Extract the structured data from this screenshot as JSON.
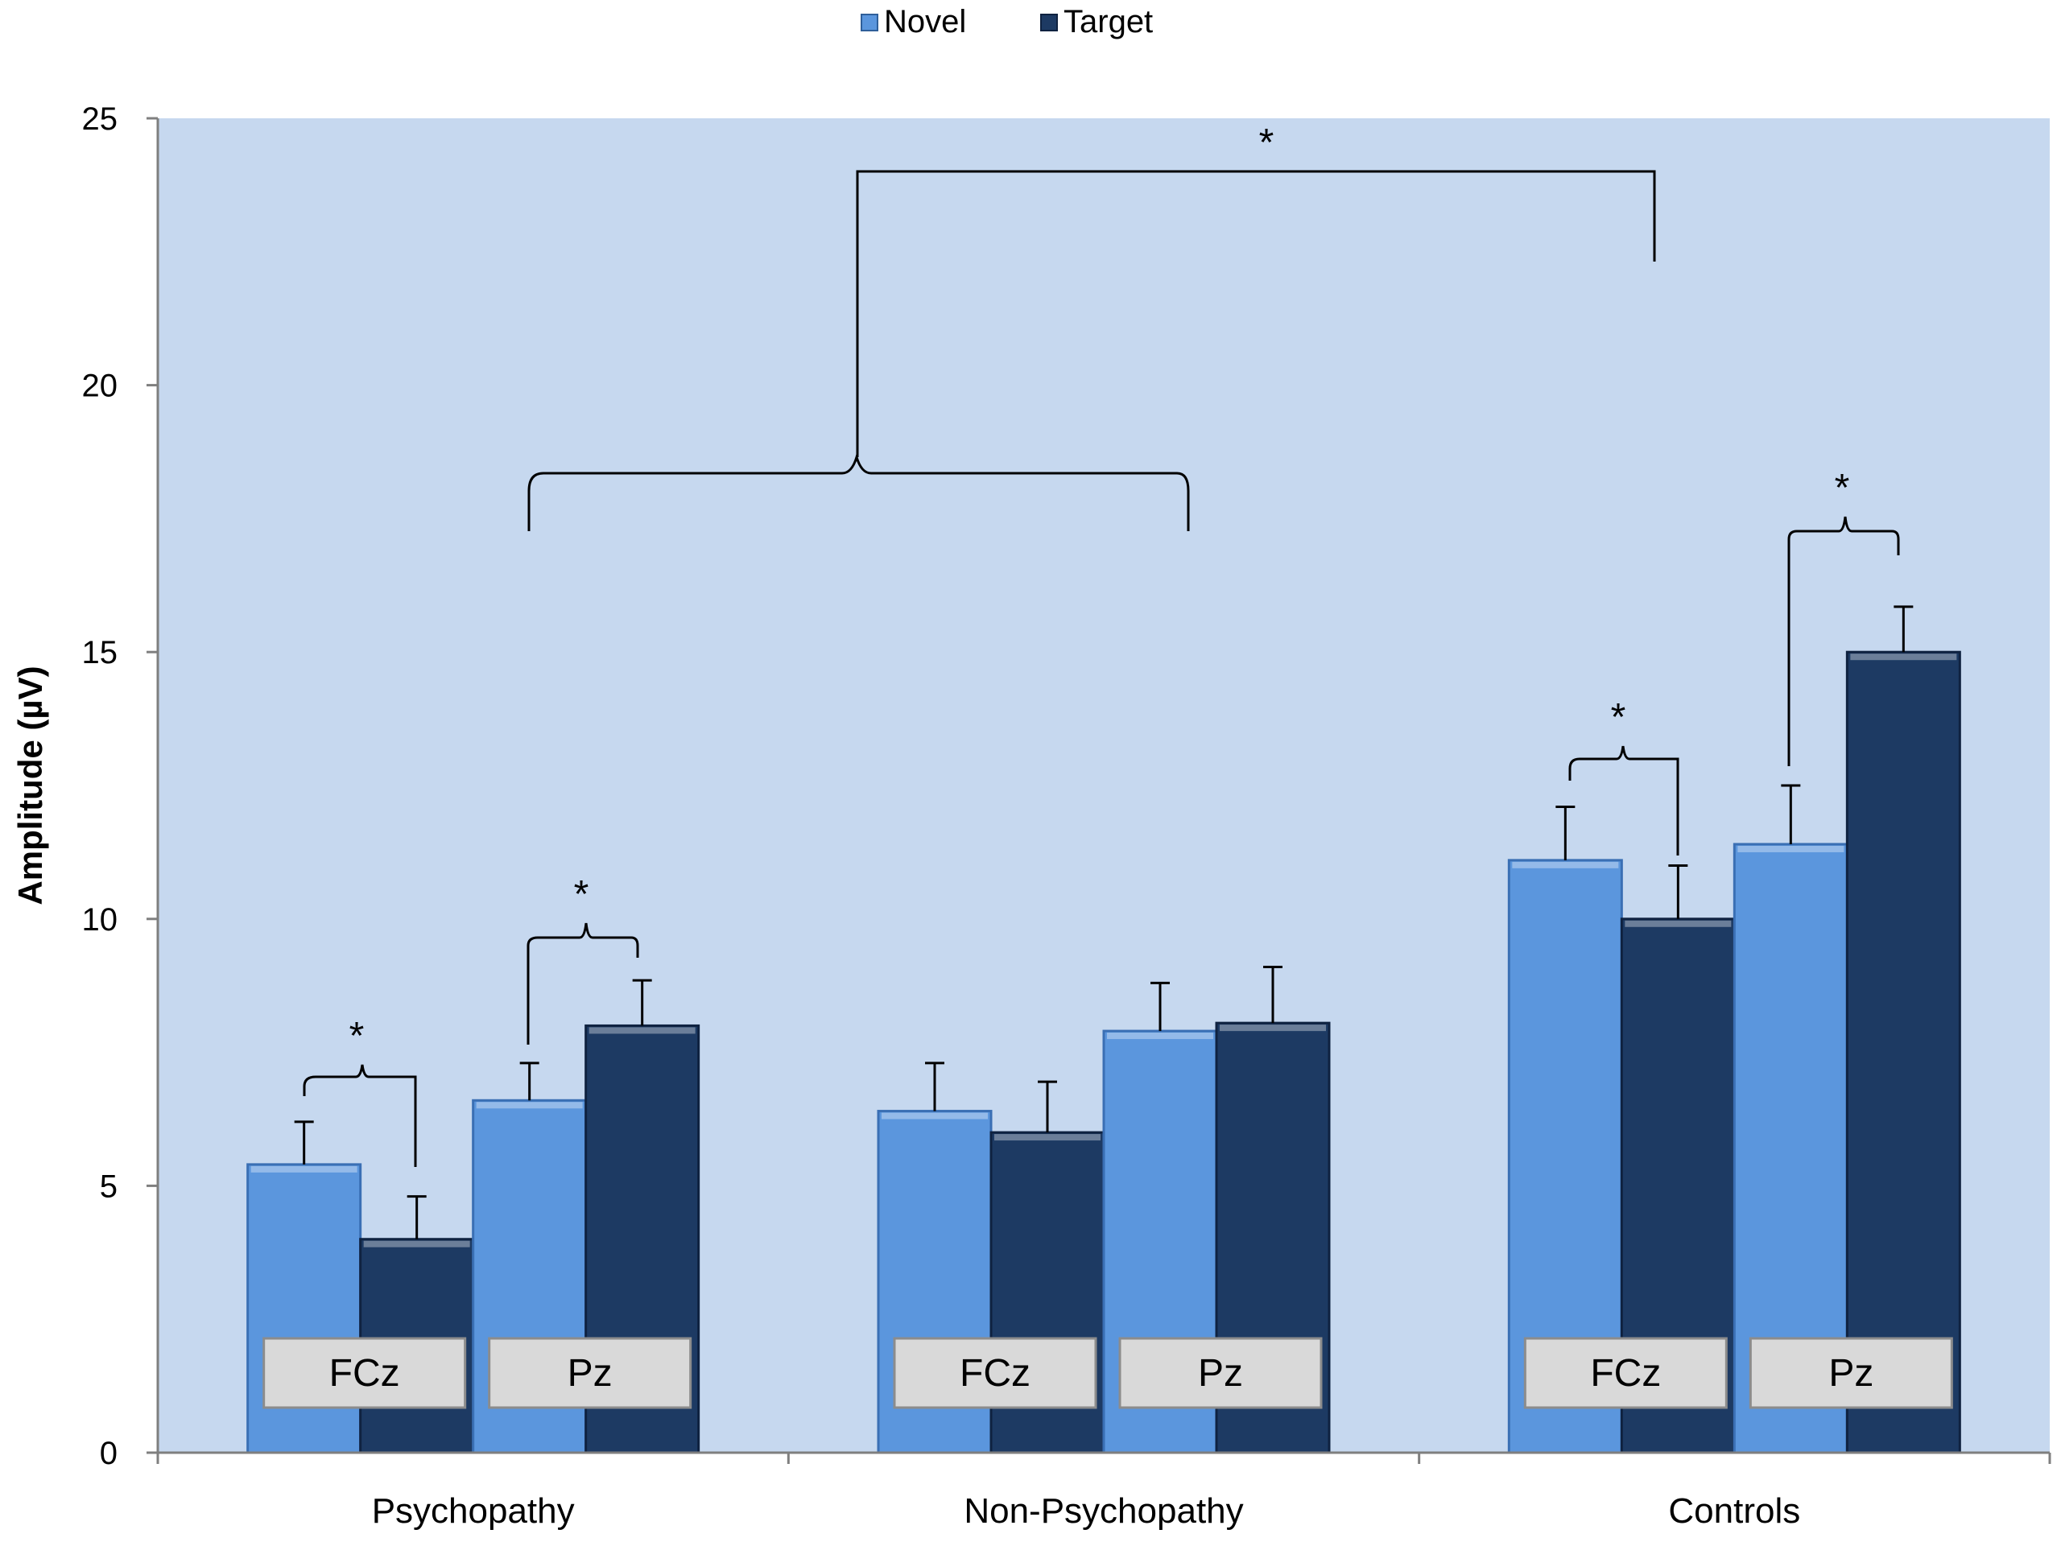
{
  "chart_data": {
    "type": "bar",
    "title": "",
    "xlabel": "",
    "ylabel": "Amplitude (µV)",
    "ylim": [
      0,
      25
    ],
    "yticks": [
      0,
      5,
      10,
      15,
      20,
      25
    ],
    "grid": false,
    "legend_position": "top",
    "plot_background": "#c6d8ef",
    "categories": [
      "Psychopathy",
      "Non-Psychopathy",
      "Controls"
    ],
    "subgroups": [
      "FCz",
      "Pz"
    ],
    "series": [
      {
        "name": "Novel",
        "color": "#5b96dd",
        "values": [
          [
            5.4,
            6.6
          ],
          [
            6.4,
            7.9
          ],
          [
            11.1,
            11.4
          ]
        ],
        "errors": [
          [
            0.8,
            0.7
          ],
          [
            0.9,
            0.9
          ],
          [
            1.0,
            1.1
          ]
        ]
      },
      {
        "name": "Target",
        "color": "#1d3a63",
        "values": [
          [
            4.0,
            8.0
          ],
          [
            6.0,
            8.05
          ],
          [
            10.0,
            15.0
          ]
        ],
        "errors": [
          [
            0.8,
            0.85
          ],
          [
            0.95,
            1.05
          ],
          [
            1.0,
            0.85
          ]
        ]
      }
    ],
    "annotations": {
      "significance_marker": "*",
      "within_pairs": [
        {
          "category": 0,
          "subgroup": 0
        },
        {
          "category": 0,
          "subgroup": 1
        },
        {
          "category": 2,
          "subgroup": 0
        },
        {
          "category": 2,
          "subgroup": 1
        }
      ],
      "group_comparison": "Psychopathy + Non-Psychopathy vs Controls"
    }
  }
}
